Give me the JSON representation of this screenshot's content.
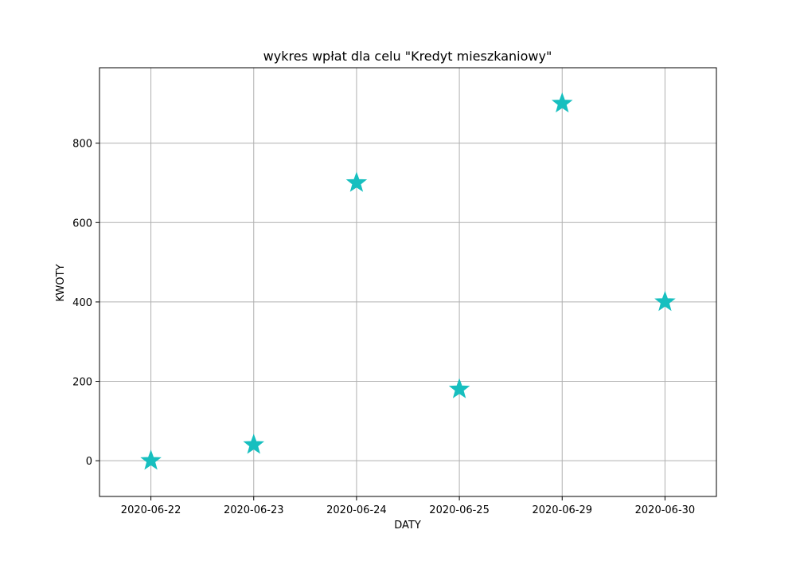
{
  "chart_data": {
    "type": "scatter",
    "title": "wykres wpłat dla celu \"Kredyt mieszkaniowy\"",
    "xlabel": "DATY",
    "ylabel": "KWOTY",
    "x_is_categorical": true,
    "categories": [
      "2020-06-22",
      "2020-06-23",
      "2020-06-24",
      "2020-06-25",
      "2020-06-29",
      "2020-06-30"
    ],
    "series": [
      {
        "marker": "star",
        "color": "#17bfbf",
        "values": [
          0,
          40,
          700,
          180,
          900,
          400
        ]
      }
    ],
    "ylim": [
      -90,
      990
    ],
    "yticks": [
      0,
      200,
      400,
      600,
      800
    ],
    "grid": true,
    "colors": {
      "grid": "#b0b0b0",
      "axes": "#000000",
      "marker": "#17bfbf"
    }
  }
}
